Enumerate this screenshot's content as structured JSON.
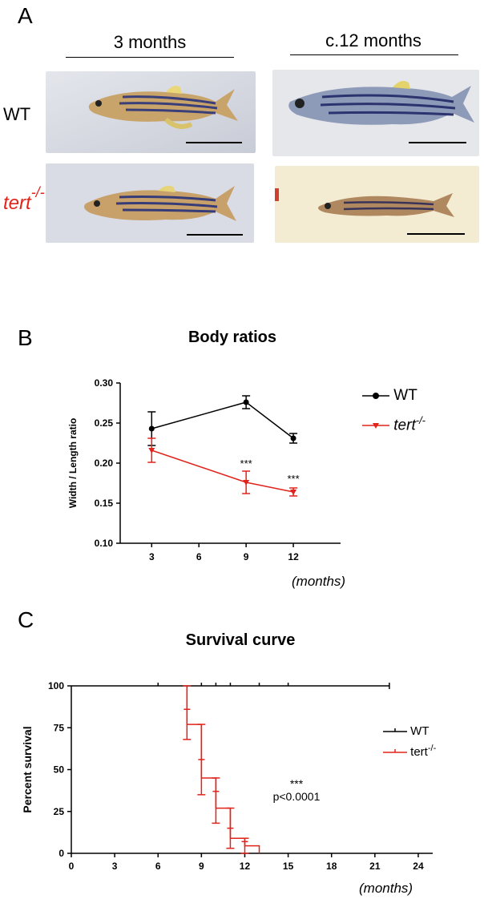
{
  "panels": {
    "a": {
      "letter": "A",
      "columns": [
        "3 months",
        "c.12 months"
      ],
      "rows": {
        "wt": "WT",
        "tert": "tert",
        "tert_sup": "-/-"
      },
      "colors": {
        "tert": "#e2231a"
      }
    },
    "b": {
      "letter": "B"
    },
    "c": {
      "letter": "C"
    }
  },
  "chart_data": [
    {
      "type": "line",
      "title": "Body ratios",
      "xlabel": "(months)",
      "ylabel": "Width / Length ratio",
      "x": [
        3,
        9,
        12
      ],
      "x_ticks": [
        "3",
        "6",
        "9",
        "12"
      ],
      "y_ticks": [
        "0.10",
        "0.15",
        "0.20",
        "0.25",
        "0.30"
      ],
      "xlim": [
        1,
        15
      ],
      "ylim": [
        0.1,
        0.3
      ],
      "legend_position": "top-right",
      "series": [
        {
          "name": "WT",
          "color": "#000000",
          "marker": "circle",
          "values": [
            0.243,
            0.276,
            0.231
          ],
          "errors": [
            0.021,
            0.008,
            0.006
          ]
        },
        {
          "name": "tert",
          "name_sup": "-/-",
          "color": "#e2231a",
          "marker": "triangle-down",
          "values": [
            0.216,
            0.176,
            0.164
          ],
          "errors": [
            0.015,
            0.014,
            0.005
          ]
        }
      ],
      "annotations": [
        {
          "text": "***",
          "x": 9,
          "y": 0.195
        },
        {
          "text": "***",
          "x": 12,
          "y": 0.176
        }
      ]
    },
    {
      "type": "line",
      "title": "Survival curve",
      "xlabel": "(months)",
      "ylabel": "Percent survival",
      "x_ticks": [
        "0",
        "3",
        "6",
        "9",
        "12",
        "15",
        "18",
        "21",
        "24"
      ],
      "y_ticks": [
        "0",
        "25",
        "50",
        "75",
        "100"
      ],
      "xlim": [
        0,
        25
      ],
      "ylim": [
        0,
        100
      ],
      "legend_position": "right",
      "series": [
        {
          "name": "WT",
          "color": "#000000",
          "steps": [
            [
              0,
              100
            ],
            [
              22,
              100
            ]
          ],
          "censor": [
            6,
            9,
            10,
            11,
            13,
            15
          ]
        },
        {
          "name": "tert",
          "name_sup": "-/-",
          "color": "#e2231a",
          "steps": [
            [
              8,
              100
            ],
            [
              8,
              77
            ],
            [
              9,
              77
            ],
            [
              9,
              45
            ],
            [
              10,
              45
            ],
            [
              10,
              27
            ],
            [
              11,
              27
            ],
            [
              11,
              9
            ],
            [
              12,
              9
            ],
            [
              12,
              4.5
            ],
            [
              13,
              4.5
            ],
            [
              13,
              0
            ]
          ],
          "errorbars": [
            [
              8,
              86,
              68,
              100
            ],
            [
              9,
              56,
              35,
              77
            ],
            [
              10,
              37,
              18,
              45
            ],
            [
              11,
              15,
              3,
              27
            ],
            [
              12,
              7,
              0,
              9
            ]
          ]
        }
      ],
      "annotations": [
        {
          "text": "***"
        },
        {
          "text": "p<0.0001"
        }
      ]
    }
  ]
}
